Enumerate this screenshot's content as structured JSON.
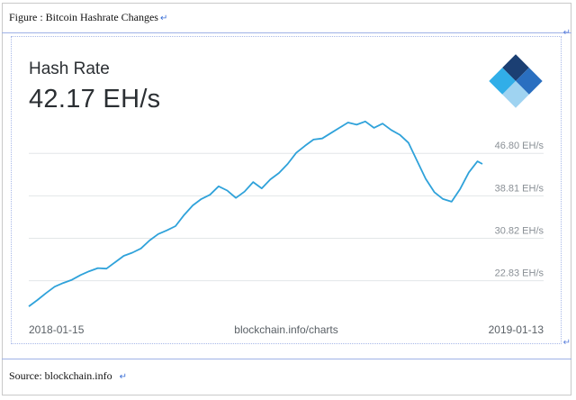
{
  "document": {
    "caption": "Figure : Bitcoin Hashrate Changes",
    "source": "Source: blockchain.info"
  },
  "colors": {
    "line": "#2fa2da",
    "grid": "#e3e6e8",
    "logo_dark": "#1b3f73",
    "logo_mid": "#2a6fc0",
    "logo_light": "#31aee8",
    "logo_pale": "#9fd3f1"
  },
  "chart_data": {
    "type": "line",
    "title": "Hash Rate",
    "headline_value": "42.17 EH/s",
    "xlabel": "",
    "ylabel": "",
    "center_label": "blockchain.info/charts",
    "x_range": [
      "2018-01-15",
      "2019-01-13"
    ],
    "x_tick_labels": [
      "2018-01-15",
      "2019-01-13"
    ],
    "ylim": [
      17.5,
      56.5
    ],
    "y_ticks": [
      22.83,
      30.82,
      38.81,
      46.8
    ],
    "y_tick_labels": [
      "22.83 EH/s",
      "30.82 EH/s",
      "38.81 EH/s",
      "46.80 EH/s"
    ],
    "grid": true,
    "series": [
      {
        "values": [
          [
            0,
            18.0
          ],
          [
            7,
            19.2
          ],
          [
            14,
            20.5
          ],
          [
            21,
            21.7
          ],
          [
            28,
            22.4
          ],
          [
            35,
            23.0
          ],
          [
            42,
            23.9
          ],
          [
            49,
            24.6
          ],
          [
            56,
            25.2
          ],
          [
            63,
            25.1
          ],
          [
            70,
            26.3
          ],
          [
            77,
            27.5
          ],
          [
            84,
            28.1
          ],
          [
            91,
            28.9
          ],
          [
            98,
            30.4
          ],
          [
            105,
            31.6
          ],
          [
            112,
            32.3
          ],
          [
            119,
            33.1
          ],
          [
            126,
            35.2
          ],
          [
            133,
            37.0
          ],
          [
            140,
            38.2
          ],
          [
            147,
            39.0
          ],
          [
            154,
            40.6
          ],
          [
            161,
            39.8
          ],
          [
            168,
            38.4
          ],
          [
            175,
            39.6
          ],
          [
            182,
            41.4
          ],
          [
            189,
            40.2
          ],
          [
            196,
            41.9
          ],
          [
            203,
            43.1
          ],
          [
            210,
            44.8
          ],
          [
            217,
            46.9
          ],
          [
            224,
            48.2
          ],
          [
            231,
            49.4
          ],
          [
            238,
            49.6
          ],
          [
            245,
            50.6
          ],
          [
            252,
            51.6
          ],
          [
            259,
            52.6
          ],
          [
            266,
            52.2
          ],
          [
            273,
            52.8
          ],
          [
            280,
            51.6
          ],
          [
            287,
            52.4
          ],
          [
            294,
            51.2
          ],
          [
            301,
            50.3
          ],
          [
            308,
            48.8
          ],
          [
            315,
            45.4
          ],
          [
            322,
            42.0
          ],
          [
            329,
            39.5
          ],
          [
            336,
            38.2
          ],
          [
            343,
            37.7
          ],
          [
            350,
            40.1
          ],
          [
            357,
            43.2
          ],
          [
            364,
            45.3
          ],
          [
            368,
            44.8
          ]
        ]
      }
    ]
  }
}
